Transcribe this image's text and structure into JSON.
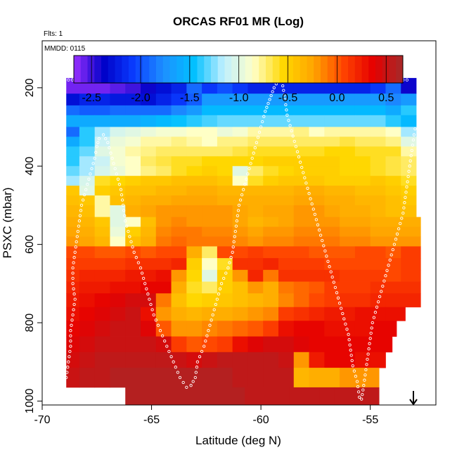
{
  "chart_data": {
    "type": "heatmap",
    "title": "ORCAS RF01 MR (Log)",
    "flights_label": "Flts: 1",
    "date_label": "MMDD: 0115",
    "xlabel": "Latitude (deg N)",
    "ylabel": "PSXC (mbar)",
    "xlim": [
      -70,
      -52
    ],
    "ylim": [
      1010,
      80
    ],
    "x_ticks": [
      -70,
      -65,
      -60,
      -55
    ],
    "y_ticks": [
      200,
      400,
      600,
      800,
      1000
    ],
    "colorbar": {
      "range": [
        -2.68,
        0.67
      ],
      "ticks": [
        -2.5,
        -2.0,
        -1.5,
        -1.0,
        -0.5,
        0.0,
        0.5
      ],
      "tick_labels": [
        "-2.5",
        "-2.0",
        "-1.5",
        "-1.0",
        "-0.5",
        "0.0",
        "0.5"
      ],
      "colors": [
        "#9b30ff",
        "#0000c8",
        "#0a3cff",
        "#1e90ff",
        "#00bfff",
        "#bfefff",
        "#ffffc8",
        "#ffd700",
        "#ffa500",
        "#ff4500",
        "#e60000",
        "#a52a2a"
      ]
    },
    "x_col_edges": [
      -68.9,
      -68.3,
      -67.6,
      -66.9,
      -66.2,
      -65.5,
      -64.8,
      -64.1,
      -63.4,
      -62.7,
      -62.0,
      -61.3,
      -60.6,
      -59.9,
      -59.2,
      -58.5,
      -57.8,
      -57.1,
      -56.4,
      -55.7,
      -55.0,
      -54.3,
      -53.6,
      -52.9
    ],
    "layers": [
      {
        "p_top": 175,
        "p_bottom": 215,
        "x_end": -52.9,
        "v": [
          -2.6,
          -2.6,
          -2.6,
          -2.55,
          -2.5,
          -2.4,
          -2.3,
          -2.2,
          -1.9,
          -2.1,
          -2.0,
          -2.1,
          -2.2,
          -2.2,
          -2.2,
          -2.2,
          -2.2,
          -2.2,
          -2.2,
          -2.2,
          -2.1,
          -1.9,
          -2.4
        ]
      },
      {
        "p_top": 215,
        "p_bottom": 245,
        "x_end": -52.9,
        "v": [
          -2.3,
          -2.2,
          -2.2,
          -2.25,
          -2.25,
          -2.3,
          -2.2,
          -2.1,
          -1.95,
          -1.7,
          -1.7,
          -1.7,
          -1.7,
          -1.7,
          -1.7,
          -1.7,
          -1.7,
          -1.7,
          -1.7,
          -1.7,
          -1.7,
          -1.8,
          -1.7
        ]
      },
      {
        "p_top": 245,
        "p_bottom": 270,
        "x_end": -52.9,
        "v": [
          -1.9,
          -1.95,
          -1.95,
          -1.9,
          -1.9,
          -1.9,
          -1.9,
          -1.8,
          -1.7,
          -1.5,
          -1.5,
          -1.5,
          -1.5,
          -1.5,
          -1.5,
          -1.5,
          -1.5,
          -1.5,
          -1.5,
          -1.5,
          -1.5,
          -1.6,
          -1.4
        ]
      },
      {
        "p_top": 270,
        "p_bottom": 300,
        "x_end": -52.9,
        "v": [
          -1.6,
          -1.6,
          -1.6,
          -1.6,
          -1.6,
          -1.55,
          -1.5,
          -1.45,
          -1.4,
          -1.35,
          -1.3,
          -1.3,
          -1.3,
          -1.3,
          -1.3,
          -1.3,
          -1.3,
          -1.3,
          -1.3,
          -1.3,
          -1.3,
          -1.4,
          -1.5
        ]
      },
      {
        "p_top": 300,
        "p_bottom": 325,
        "x_end": -52.9,
        "v": [
          -1.9,
          -1.4,
          -1.2,
          -1.05,
          -1.0,
          -0.95,
          -0.9,
          -0.9,
          -0.85,
          -0.85,
          -0.95,
          -0.9,
          -0.8,
          -0.8,
          -0.8,
          -0.75,
          -0.85,
          -0.8,
          -0.8,
          -0.8,
          -0.8,
          -0.85,
          -1.2
        ]
      },
      {
        "p_top": 325,
        "p_bottom": 350,
        "x_end": -52.9,
        "v": [
          -1.6,
          -1.4,
          -1.1,
          -0.95,
          -0.9,
          -0.8,
          -0.8,
          -0.75,
          -0.8,
          -0.85,
          -0.75,
          -0.75,
          -0.7,
          -0.7,
          -0.7,
          -0.7,
          -0.7,
          -0.7,
          -0.65,
          -0.7,
          -0.7,
          -0.75,
          -1.0
        ]
      },
      {
        "p_top": 350,
        "p_bottom": 375,
        "x_end": -52.9,
        "v": [
          -1.4,
          -1.3,
          -1.0,
          -0.9,
          -0.8,
          -0.75,
          -0.7,
          -0.7,
          -0.7,
          -0.7,
          -0.7,
          -0.65,
          -0.6,
          -0.6,
          -0.6,
          -0.6,
          -0.6,
          -0.55,
          -0.55,
          -0.6,
          -0.6,
          -0.6,
          -0.8
        ]
      },
      {
        "p_top": 375,
        "p_bottom": 400,
        "x_end": -52.9,
        "v": [
          -1.4,
          -1.2,
          -1.1,
          -0.9,
          -0.85,
          -0.7,
          -0.65,
          -0.6,
          -0.6,
          -0.55,
          -0.55,
          -0.55,
          -0.55,
          -0.5,
          -0.5,
          -0.5,
          -0.5,
          -0.5,
          -0.55,
          -0.55,
          -0.6,
          -0.65,
          -0.7
        ]
      },
      {
        "p_top": 400,
        "p_bottom": 425,
        "x_end": -52.9,
        "v": [
          -1.3,
          -1.2,
          -1.05,
          -0.95,
          -0.85,
          -0.75,
          -0.7,
          -0.6,
          -0.55,
          -0.5,
          -0.55,
          -1.0,
          -0.7,
          -0.6,
          -0.55,
          -0.5,
          -0.5,
          -0.5,
          -0.55,
          -0.55,
          -0.6,
          -0.65,
          -0.7
        ]
      },
      {
        "p_top": 425,
        "p_bottom": 450,
        "x_end": -52.9,
        "v": [
          -1.2,
          -1.05,
          -0.6,
          -0.55,
          -0.5,
          -0.45,
          -0.45,
          -0.4,
          -0.4,
          -0.4,
          -0.45,
          -0.85,
          -0.6,
          -0.5,
          -0.45,
          -0.45,
          -0.45,
          -0.5,
          -0.5,
          -0.5,
          -0.45,
          -0.5,
          -0.6
        ]
      },
      {
        "p_top": 450,
        "p_bottom": 475,
        "x_end": -52.9,
        "v": [
          -0.45,
          -1.0,
          -0.5,
          -0.45,
          -0.4,
          -0.4,
          -0.35,
          -0.35,
          -0.3,
          -0.3,
          -0.35,
          -0.35,
          -0.35,
          -0.35,
          -0.35,
          -0.3,
          -0.3,
          -0.35,
          -0.35,
          -0.4,
          -0.4,
          -0.45,
          -0.5
        ]
      },
      {
        "p_top": 475,
        "p_bottom": 500,
        "x_end": -52.9,
        "v": [
          -0.4,
          -0.45,
          -0.8,
          -0.4,
          -0.35,
          -0.3,
          -0.3,
          -0.25,
          -0.25,
          -0.25,
          -0.3,
          -0.3,
          -0.3,
          -0.3,
          -0.3,
          -0.25,
          -0.25,
          -0.3,
          -0.3,
          -0.35,
          -0.35,
          -0.4,
          -0.45
        ]
      },
      {
        "p_top": 500,
        "p_bottom": 530,
        "x_end": -52.9,
        "v": [
          -0.35,
          -0.4,
          -0.8,
          -1.0,
          -0.3,
          -0.25,
          -0.2,
          -0.2,
          -0.2,
          -0.2,
          -0.2,
          -0.25,
          -0.3,
          -0.25,
          -0.25,
          -0.2,
          -0.2,
          -0.25,
          -0.3,
          -0.3,
          -0.35,
          -0.4,
          -0.4
        ]
      },
      {
        "p_top": 530,
        "p_bottom": 555,
        "x_end": -52.7,
        "v": [
          -0.3,
          -0.35,
          -0.45,
          -1.0,
          -0.85,
          -0.4,
          -0.2,
          -0.15,
          -0.2,
          -0.2,
          -0.2,
          -0.25,
          -0.35,
          -0.3,
          -0.25,
          -0.2,
          -0.2,
          -0.2,
          -0.25,
          -0.25,
          -0.3,
          -0.3,
          -0.3
        ]
      },
      {
        "p_top": 555,
        "p_bottom": 580,
        "x_end": -52.7,
        "v": [
          -0.25,
          -0.3,
          -0.4,
          -0.95,
          -0.5,
          -0.35,
          -0.15,
          -0.1,
          -0.1,
          -0.15,
          -0.15,
          -0.2,
          -0.25,
          -0.2,
          -0.2,
          -0.15,
          -0.15,
          -0.15,
          -0.2,
          -0.2,
          -0.25,
          -0.25,
          -0.25
        ]
      },
      {
        "p_top": 580,
        "p_bottom": 605,
        "x_end": -52.7,
        "v": [
          -0.2,
          -0.25,
          -0.35,
          -0.85,
          -0.4,
          -0.3,
          -0.1,
          -0.05,
          -0.1,
          -0.1,
          -0.1,
          -0.15,
          -0.2,
          -0.15,
          -0.15,
          -0.1,
          -0.1,
          -0.1,
          -0.15,
          -0.15,
          -0.2,
          -0.2,
          -0.2
        ]
      },
      {
        "p_top": 605,
        "p_bottom": 635,
        "x_end": -52.7,
        "v": [
          0.05,
          0.05,
          0.0,
          0.0,
          0.05,
          0.0,
          0.05,
          0.05,
          -0.3,
          -0.7,
          0.05,
          0.05,
          0.1,
          0.05,
          0.05,
          0.05,
          0.0,
          0.0,
          0.0,
          0.05,
          0.05,
          0.0,
          0.1
        ]
      },
      {
        "p_top": 635,
        "p_bottom": 665,
        "x_end": -52.7,
        "v": [
          0.1,
          0.1,
          0.1,
          0.1,
          0.15,
          0.15,
          0.15,
          0.2,
          -0.5,
          -0.85,
          -0.6,
          0.15,
          0.15,
          0.2,
          0.1,
          0.1,
          0.1,
          0.05,
          0.05,
          0.05,
          0.05,
          0.05,
          0.1
        ]
      },
      {
        "p_top": 665,
        "p_bottom": 695,
        "x_end": -52.7,
        "v": [
          0.15,
          0.2,
          0.2,
          0.2,
          0.25,
          0.25,
          0.3,
          -0.2,
          -0.55,
          -1.0,
          -0.5,
          -0.2,
          0.2,
          -0.1,
          0.15,
          0.15,
          0.15,
          0.15,
          0.1,
          0.1,
          0.1,
          0.05,
          0.1
        ]
      },
      {
        "p_top": 695,
        "p_bottom": 725,
        "x_end": -52.7,
        "v": [
          0.2,
          0.25,
          0.25,
          0.3,
          0.3,
          0.35,
          0.35,
          -0.3,
          -0.6,
          -0.7,
          -0.5,
          -0.4,
          -0.2,
          -0.3,
          -0.1,
          -0.05,
          0.0,
          0.1,
          0.1,
          0.1,
          0.15,
          0.15,
          0.15
        ]
      },
      {
        "p_top": 725,
        "p_bottom": 760,
        "x_end": -52.7,
        "v": [
          0.25,
          0.3,
          0.35,
          0.4,
          0.45,
          0.45,
          -0.1,
          -0.4,
          -0.55,
          -0.5,
          -0.45,
          -0.4,
          -0.35,
          -0.3,
          -0.15,
          -0.05,
          0.05,
          0.1,
          0.15,
          0.15,
          0.2,
          0.2,
          0.2
        ]
      },
      {
        "p_top": 760,
        "p_bottom": 795,
        "x_end": -53.4,
        "v": [
          0.3,
          0.35,
          0.4,
          0.45,
          0.5,
          0.3,
          -0.2,
          -0.3,
          -0.35,
          -0.3,
          -0.3,
          -0.25,
          -0.2,
          -0.15,
          0.1,
          0.15,
          0.2,
          0.25,
          0.25,
          0.3,
          0.3,
          0.3
        ]
      },
      {
        "p_top": 795,
        "p_bottom": 835,
        "x_end": -53.8,
        "v": [
          0.35,
          0.4,
          0.45,
          0.5,
          0.5,
          0.4,
          0.0,
          -0.2,
          -0.2,
          -0.15,
          -0.1,
          -0.05,
          0.0,
          0.1,
          0.3,
          0.35,
          0.35,
          0.3,
          0.3,
          0.3,
          0.35
        ]
      },
      {
        "p_top": 835,
        "p_bottom": 875,
        "x_end": -54.0,
        "v": [
          0.4,
          0.45,
          0.5,
          0.5,
          0.5,
          0.5,
          0.45,
          0.1,
          0.0,
          0.05,
          0.1,
          0.3,
          0.4,
          0.45,
          0.45,
          0.4,
          0.35,
          0.35,
          0.35,
          0.35,
          0.35
        ]
      },
      {
        "p_top": 875,
        "p_bottom": 915,
        "x_end": -54.3,
        "v": [
          0.45,
          0.5,
          0.55,
          0.55,
          0.55,
          0.55,
          0.55,
          0.5,
          0.45,
          0.5,
          0.55,
          0.55,
          0.55,
          0.55,
          0.5,
          -0.2,
          0.25,
          0.35,
          0.35,
          0.3,
          0.3
        ]
      },
      {
        "p_top": 915,
        "p_bottom": 965,
        "x_end": -54.6,
        "v": [
          0.5,
          0.55,
          0.55,
          0.6,
          0.6,
          0.6,
          0.6,
          0.6,
          0.6,
          0.6,
          0.6,
          0.55,
          0.55,
          0.55,
          0.55,
          -0.35,
          -0.3,
          -0.3,
          -0.2,
          -0.2
        ]
      },
      {
        "p_top": 965,
        "p_bottom": 1010,
        "x_start": -66.2,
        "x_end": -54.6,
        "v": [
          0.6,
          0.6,
          0.6,
          0.6,
          0.6,
          0.6,
          0.6,
          0.6,
          0.55,
          0.55,
          0.55,
          0.55,
          0.55,
          0.55,
          0.55,
          0.55,
          0.55
        ]
      }
    ],
    "flight_track": {
      "lat": [
        -68.9,
        -68.8,
        -68.7,
        -68.7,
        -68.6,
        -68.5,
        -68.6,
        -68.6,
        -68.5,
        -68.4,
        -68.3,
        -68.2,
        -68.0,
        -67.8,
        -67.6,
        -67.5,
        -67.4,
        -67.2,
        -67.0,
        -66.8,
        -66.6,
        -66.4,
        -66.3,
        -66.2,
        -66.0,
        -65.8,
        -65.5,
        -65.3,
        -65.1,
        -64.9,
        -64.6,
        -64.3,
        -64.0,
        -63.7,
        -63.4,
        -63.2,
        -63.0,
        -62.9,
        -62.6,
        -62.4,
        -62.2,
        -62.0,
        -61.8,
        -61.5,
        -61.3,
        -61.2,
        -61.1,
        -61.0,
        -60.8,
        -60.6,
        -60.4,
        -60.2,
        -60.0,
        -59.8,
        -59.6,
        -59.4,
        -59.2,
        -59.1,
        -59.0,
        -58.9,
        -58.8,
        -58.6,
        -58.4,
        -58.2,
        -58.0,
        -57.8,
        -57.6,
        -57.4,
        -57.2,
        -57.0,
        -56.8,
        -56.6,
        -56.4,
        -56.2,
        -56.0,
        -55.9,
        -55.8,
        -55.6,
        -55.5,
        -55.4,
        -55.3,
        -55.2,
        -55.1,
        -55.0,
        -54.9,
        -54.7,
        -54.5,
        -54.3,
        -54.1,
        -53.9,
        -53.7,
        -53.5,
        -53.4,
        -53.3,
        -53.2,
        -53.1,
        -53.0,
        -52.9
      ],
      "psxc": [
        940,
        900,
        860,
        820,
        780,
        740,
        700,
        660,
        620,
        580,
        540,
        500,
        460,
        420,
        380,
        350,
        330,
        320,
        340,
        380,
        420,
        460,
        500,
        540,
        580,
        620,
        660,
        700,
        740,
        780,
        820,
        860,
        900,
        940,
        965,
        960,
        940,
        900,
        860,
        820,
        780,
        740,
        700,
        660,
        620,
        580,
        540,
        500,
        460,
        420,
        380,
        340,
        300,
        260,
        230,
        200,
        180,
        182,
        195,
        230,
        270,
        310,
        350,
        390,
        430,
        470,
        510,
        550,
        590,
        630,
        670,
        710,
        750,
        790,
        830,
        870,
        910,
        950,
        990,
        995,
        960,
        920,
        880,
        840,
        800,
        760,
        720,
        680,
        640,
        600,
        560,
        520,
        480,
        440,
        400,
        360,
        320,
        290
      ]
    }
  }
}
